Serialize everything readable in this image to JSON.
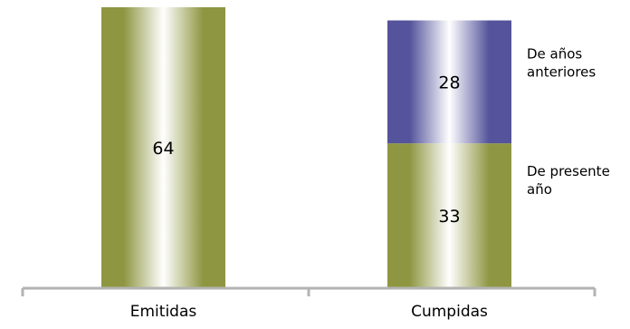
{
  "chart_data": {
    "type": "bar",
    "stacked": true,
    "categories": [
      "Emitidas",
      "Cumpidas"
    ],
    "series": [
      {
        "name": "De presente año",
        "values": [
          64,
          33
        ],
        "color": "#8f9642",
        "legend_lines": [
          "De presente",
          "año"
        ]
      },
      {
        "name": "De años anteriores",
        "values": [
          0,
          28
        ],
        "color": "#54539b",
        "legend_lines": [
          "De años",
          "anteriores"
        ]
      }
    ],
    "title": "",
    "xlabel": "",
    "ylabel": "",
    "ylim": [
      0,
      64
    ],
    "grid": false,
    "legend": "right"
  }
}
